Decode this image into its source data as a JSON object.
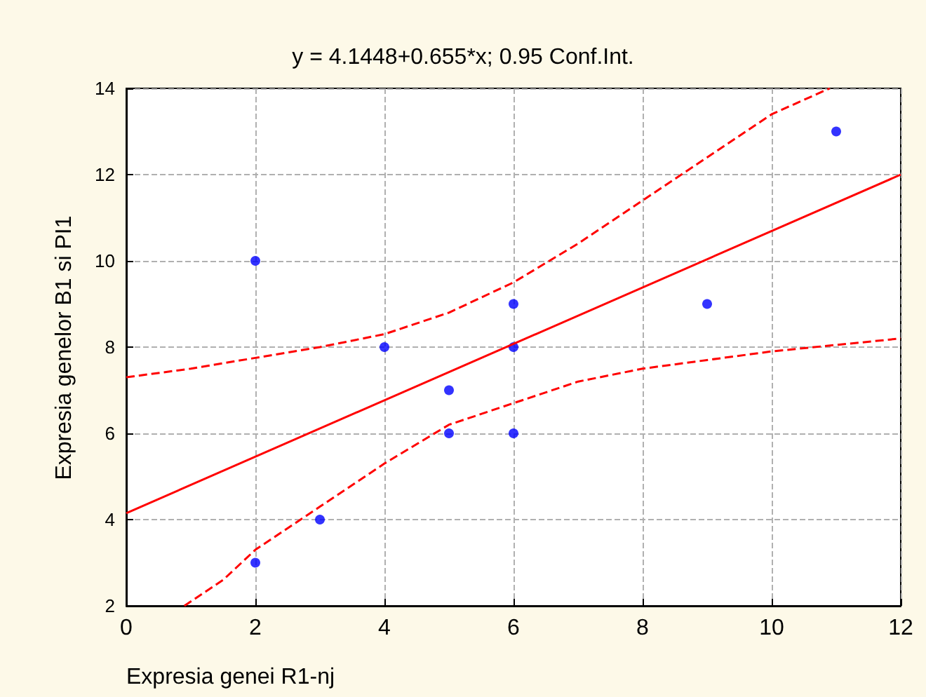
{
  "chart_data": {
    "type": "scatter",
    "title": "y = 4.1448+0.655*x; 0.95 Conf.Int.",
    "xlabel": "Expresia genei R1-nj",
    "ylabel": "Expresia genelor B1 si PI1",
    "xlim": [
      0,
      12
    ],
    "xticks": [
      0,
      2,
      4,
      6,
      8,
      10,
      12
    ],
    "ylim": [
      2,
      14
    ],
    "yticks": [
      2,
      4,
      6,
      8,
      10,
      12,
      14
    ],
    "grid": true,
    "series": [
      {
        "color": "#0000ff",
        "marker": "circle",
        "x": [
          2,
          2,
          3,
          4,
          5,
          5,
          6,
          6,
          6,
          9,
          11
        ],
        "values": [
          3,
          10,
          4,
          8,
          6,
          7,
          6,
          8,
          9,
          9,
          13
        ]
      },
      {
        "type": "line",
        "color": "#ff0000",
        "marker": "none",
        "line_style": "solid",
        "x": [
          0,
          12
        ],
        "values": [
          4.15,
          12.0
        ]
      },
      {
        "type": "line",
        "color": "#ff0000",
        "marker": "none",
        "line_style": "dashed",
        "x": [
          0,
          1,
          2,
          3,
          4,
          5,
          6,
          7,
          8,
          9,
          10,
          10.9
        ],
        "values": [
          7.3,
          7.5,
          7.75,
          8.0,
          8.3,
          8.8,
          9.5,
          10.4,
          11.4,
          12.4,
          13.4,
          14
        ]
      },
      {
        "type": "line",
        "color": "#ff0000",
        "marker": "none",
        "line_style": "dashed",
        "x": [
          0.9,
          1.5,
          2,
          3,
          4,
          5,
          6,
          7,
          8,
          9,
          10,
          11,
          12
        ],
        "values": [
          2,
          2.6,
          3.3,
          4.3,
          5.3,
          6.2,
          6.7,
          7.2,
          7.5,
          7.7,
          7.9,
          8.05,
          8.2
        ]
      }
    ]
  }
}
